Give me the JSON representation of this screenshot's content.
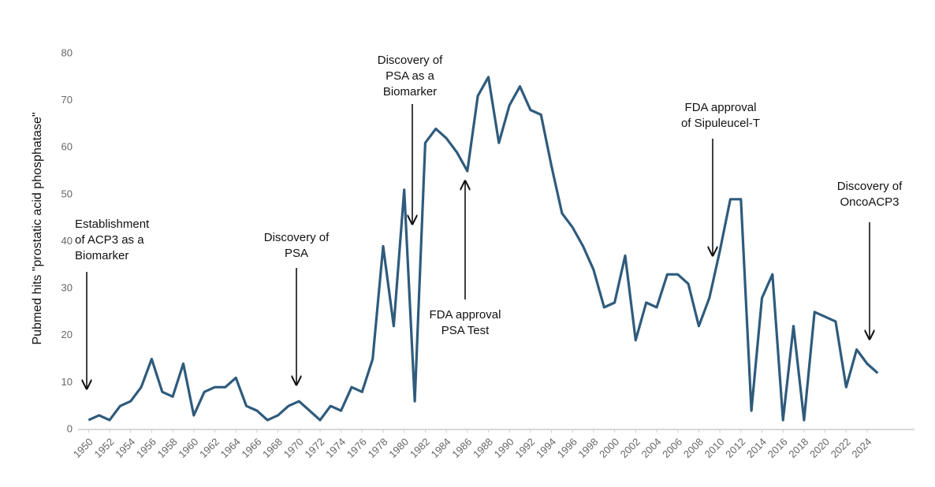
{
  "chart_data": {
    "type": "line",
    "y_label": "Pubmed hits \"prostatic acid phosphatase\"",
    "x": [
      1950,
      1951,
      1952,
      1953,
      1954,
      1955,
      1956,
      1957,
      1958,
      1959,
      1960,
      1961,
      1962,
      1963,
      1964,
      1965,
      1966,
      1967,
      1968,
      1969,
      1970,
      1971,
      1972,
      1973,
      1974,
      1975,
      1976,
      1977,
      1978,
      1979,
      1980,
      1981,
      1982,
      1983,
      1984,
      1985,
      1986,
      1987,
      1988,
      1989,
      1990,
      1991,
      1992,
      1993,
      1994,
      1995,
      1996,
      1997,
      1998,
      1999,
      2000,
      2001,
      2002,
      2003,
      2004,
      2005,
      2006,
      2007,
      2008,
      2009,
      2010,
      2011,
      2012,
      2013,
      2014,
      2015,
      2016,
      2017,
      2018,
      2019,
      2020,
      2021,
      2022,
      2023,
      2024,
      2025
    ],
    "values": [
      2,
      3,
      2,
      5,
      6,
      9,
      15,
      8,
      7,
      14,
      3,
      8,
      9,
      9,
      11,
      5,
      4,
      2,
      3,
      5,
      6,
      4,
      2,
      5,
      4,
      9,
      8,
      15,
      39,
      22,
      51,
      6,
      61,
      64,
      62,
      59,
      55,
      71,
      75,
      61,
      69,
      73,
      68,
      67,
      56,
      46,
      43,
      39,
      34,
      26,
      27,
      37,
      19,
      27,
      26,
      33,
      33,
      31,
      22,
      28,
      38,
      49,
      49,
      4,
      28,
      33,
      2,
      22,
      2,
      25,
      24,
      23,
      9,
      17,
      14,
      12
    ],
    "color": "#2f5b7c",
    "xlim": [
      1949,
      2028.5
    ],
    "xticks": [
      1950,
      1952,
      1954,
      1956,
      1958,
      1960,
      1962,
      1964,
      1966,
      1968,
      1970,
      1972,
      1974,
      1976,
      1978,
      1980,
      1982,
      1984,
      1986,
      1988,
      1990,
      1992,
      1994,
      1996,
      1998,
      2000,
      2002,
      2004,
      2006,
      2008,
      2010,
      2012,
      2014,
      2016,
      2018,
      2020,
      2022,
      2024
    ],
    "ylim": [
      0,
      80
    ],
    "yticks": [
      0,
      10,
      20,
      30,
      40,
      50,
      60,
      70,
      80
    ],
    "grid": false,
    "annotations": [
      {
        "lines": [
          "Establishment",
          "of ACP3 as a",
          "Biomarker"
        ]
      },
      {
        "lines": [
          "Discovery of",
          "PSA"
        ]
      },
      {
        "lines": [
          "Discovery of",
          "PSA as a",
          "Biomarker"
        ]
      },
      {
        "lines": [
          "FDA approval",
          "PSA Test"
        ]
      },
      {
        "lines": [
          "FDA approval",
          "of Sipuleucel-T"
        ]
      },
      {
        "lines": [
          "Discovery of",
          "OncoACP3"
        ]
      }
    ]
  }
}
